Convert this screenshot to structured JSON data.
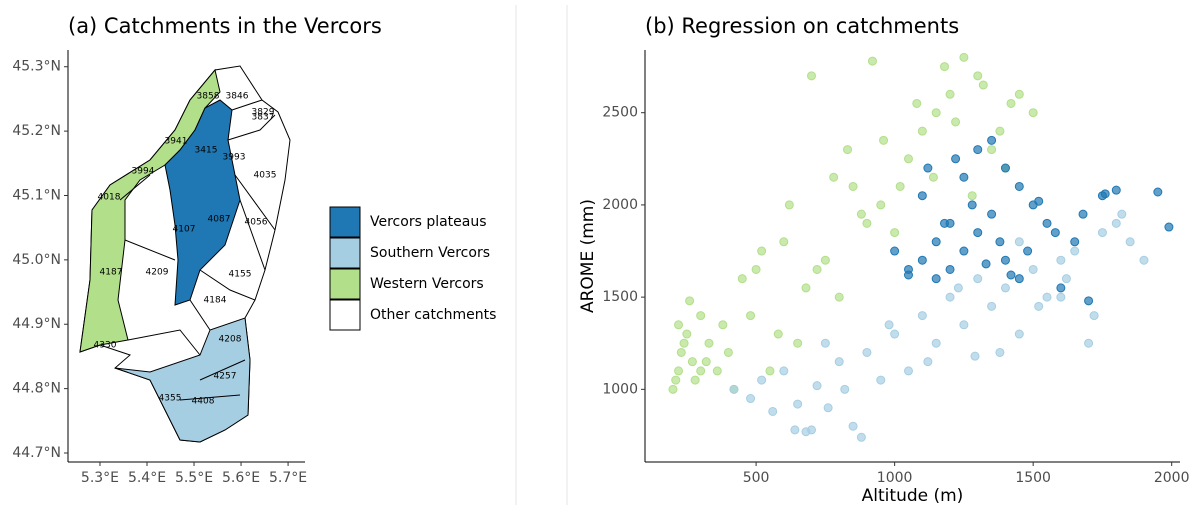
{
  "chart_data": [
    {
      "type": "map",
      "title": "(a) Catchments in the Vercors",
      "xlim": [
        5.232,
        5.736
      ],
      "ylim": [
        44.686,
        45.326
      ],
      "xticks": [
        {
          "value": 5.3,
          "label": "5.3°E"
        },
        {
          "value": 5.4,
          "label": "5.4°E"
        },
        {
          "value": 5.5,
          "label": "5.5°E"
        },
        {
          "value": 5.6,
          "label": "5.6°E"
        },
        {
          "value": 5.7,
          "label": "5.7°E"
        }
      ],
      "yticks": [
        {
          "value": 44.7,
          "label": "44.7°N"
        },
        {
          "value": 44.8,
          "label": "44.8°N"
        },
        {
          "value": 44.9,
          "label": "44.9°N"
        },
        {
          "value": 45.0,
          "label": "45.0°N"
        },
        {
          "value": 45.1,
          "label": "45.1°N"
        },
        {
          "value": 45.2,
          "label": "45.2°N"
        },
        {
          "value": 45.3,
          "label": "45.3°N"
        }
      ],
      "legend": [
        {
          "label": "Vercors plateaus",
          "color": "#1f78b4"
        },
        {
          "label": "Southern Vercors",
          "color": "#a6cee3"
        },
        {
          "label": "Western Vercors",
          "color": "#b2df8a"
        },
        {
          "label": "Other catchments",
          "color": "#ffffff"
        }
      ],
      "region_labels": [
        "3858",
        "3846",
        "3829",
        "3837",
        "3941",
        "3415",
        "3993",
        "4035",
        "3994",
        "4018",
        "4087",
        "4056",
        "4107",
        "4187",
        "4209",
        "4155",
        "4184",
        "4208",
        "4330",
        "4257",
        "4355",
        "4408"
      ]
    },
    {
      "type": "scatter",
      "title": "(b) Regression on catchments",
      "x_label": "Altitude (m)",
      "y_label": "AROME (mm)",
      "xlim": [
        99,
        2030
      ],
      "ylim": [
        606,
        2840
      ],
      "xticks": [
        500,
        1000,
        1500,
        2000
      ],
      "yticks": [
        1000,
        1500,
        2000,
        2500
      ],
      "series": [
        {
          "color": "#b2df8a",
          "x": [
            200,
            210,
            220,
            230,
            250,
            270,
            300,
            330,
            360,
            400,
            450,
            500,
            550,
            600,
            650,
            700,
            750,
            800,
            850,
            900,
            950,
            1000,
            1050,
            1100,
            1150,
            1200,
            1250,
            1300,
            1350,
            1400,
            1450,
            1500,
            280,
            320,
            380,
            420,
            480,
            520,
            580,
            620,
            680,
            720,
            780,
            830,
            880,
            920,
            960,
            1020,
            1080,
            1140,
            1180,
            1220,
            1280,
            1320,
            1380,
            1420,
            220,
            240,
            260,
            300
          ],
          "values": [
            1000,
            1050,
            1100,
            1200,
            1300,
            1150,
            1400,
            1250,
            1100,
            1200,
            1600,
            1650,
            1100,
            1800,
            1250,
            2700,
            1700,
            1500,
            2100,
            1900,
            2000,
            1850,
            2250,
            2400,
            2500,
            2600,
            2800,
            2700,
            2300,
            2200,
            2600,
            2500,
            1050,
            1150,
            1350,
            1000,
            1400,
            1750,
            1300,
            2000,
            1550,
            1650,
            2150,
            2300,
            1950,
            2780,
            2350,
            2100,
            2550,
            2150,
            2750,
            2450,
            2050,
            2650,
            2400,
            2550,
            1350,
            1250,
            1480,
            1100
          ]
        },
        {
          "color": "#a6cee3",
          "x": [
            420,
            480,
            520,
            560,
            600,
            640,
            680,
            720,
            760,
            800,
            850,
            900,
            950,
            1000,
            1050,
            1100,
            1150,
            1200,
            1250,
            1300,
            1350,
            1400,
            1450,
            1500,
            1550,
            1600,
            1650,
            1700,
            1750,
            1800,
            1850,
            1900,
            650,
            700,
            750,
            820,
            880,
            980,
            1120,
            1230,
            1380,
            1520,
            1620,
            1720,
            1820,
            1290,
            1450,
            1600
          ],
          "values": [
            1000,
            950,
            1050,
            880,
            1100,
            780,
            770,
            1020,
            900,
            1150,
            800,
            1200,
            1050,
            1300,
            1100,
            1400,
            1250,
            1500,
            1350,
            1600,
            1450,
            1550,
            1300,
            1650,
            1500,
            1700,
            1750,
            1250,
            1850,
            1900,
            1800,
            1700,
            920,
            780,
            1250,
            1000,
            740,
            1350,
            1150,
            1550,
            1200,
            1450,
            1600,
            1400,
            1950,
            1180,
            1800,
            1500
          ]
        },
        {
          "color": "#1f78b4",
          "x": [
            1050,
            1100,
            1150,
            1200,
            1250,
            1300,
            1350,
            1400,
            1450,
            1500,
            1100,
            1150,
            1200,
            1250,
            1300,
            1350,
            1400,
            1450,
            1550,
            1600,
            1650,
            1700,
            1750,
            1800,
            1950,
            1990,
            1000,
            1050,
            1120,
            1180,
            1220,
            1280,
            1330,
            1380,
            1420,
            1480,
            1520,
            1580,
            1680,
            1760
          ],
          "values": [
            1650,
            1700,
            1800,
            1900,
            2150,
            2300,
            2350,
            2200,
            2100,
            2000,
            2050,
            1600,
            1650,
            1750,
            1850,
            1950,
            1700,
            1600,
            1900,
            1550,
            1800,
            1480,
            2050,
            2080,
            2070,
            1880,
            1750,
            1620,
            2200,
            1900,
            2250,
            2000,
            1680,
            1800,
            1620,
            1750,
            2020,
            1850,
            1950,
            2060
          ]
        }
      ]
    }
  ]
}
